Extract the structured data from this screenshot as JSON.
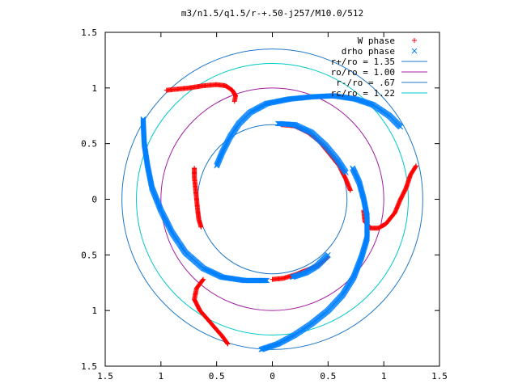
{
  "chart_data": {
    "type": "scatter",
    "title": "m3/n1.5/q1.5/r-+.50-j257/M10.0/512",
    "xlim": [
      -1.5,
      1.5
    ],
    "ylim": [
      -1.5,
      1.5
    ],
    "x_ticks": [
      -1.5,
      -1,
      -0.5,
      0,
      0.5,
      1,
      1.5
    ],
    "y_ticks": [
      -1.5,
      -1,
      -0.5,
      0,
      0.5,
      1,
      1.5
    ],
    "x_tick_labels": [
      "1.5",
      "1",
      "0.5",
      "0",
      "0.5",
      "1",
      "1.5"
    ],
    "y_tick_labels": [
      "1.5",
      "1",
      "0.5",
      "0",
      "0.5",
      "1",
      "1.5"
    ],
    "grid": false,
    "legend_position": "top-right",
    "legend": [
      {
        "label": "W phase",
        "marker": "+",
        "color": "#ff0000"
      },
      {
        "label": "drho phase",
        "marker": "x",
        "color": "#0080ff"
      },
      {
        "label": "r+/ro = 1.35",
        "line": true,
        "color": "#1f77c8"
      },
      {
        "label": "ro/ro = 1.00",
        "line": true,
        "color": "#a020a0"
      },
      {
        "label": "r-/ro = .67",
        "line": true,
        "color": "#1f77c8"
      },
      {
        "label": "rc/ro = 1.22",
        "line": true,
        "color": "#00c8c8"
      }
    ],
    "circles": [
      {
        "name": "r+/ro = 1.35",
        "r": 1.35,
        "color": "#1f77c8"
      },
      {
        "name": "ro/ro = 1.00",
        "r": 1.0,
        "color": "#a020a0"
      },
      {
        "name": "r-/ro = .67",
        "r": 0.67,
        "color": "#1f77c8"
      },
      {
        "name": "rc/ro = 1.22",
        "r": 1.22,
        "color": "#00c8c8"
      }
    ],
    "series": [
      {
        "name": "W phase",
        "color": "#ff0000",
        "marker": "+",
        "arms": [
          [
            [
              -0.7,
              0.28
            ],
            [
              -0.7,
              0.2
            ],
            [
              -0.69,
              0.1
            ],
            [
              -0.68,
              0.0
            ],
            [
              -0.67,
              -0.1
            ],
            [
              -0.66,
              -0.18
            ],
            [
              -0.64,
              -0.25
            ]
          ],
          [
            [
              -0.95,
              0.98
            ],
            [
              -0.85,
              0.99
            ],
            [
              -0.75,
              1.0
            ],
            [
              -0.62,
              1.02
            ],
            [
              -0.5,
              1.03
            ],
            [
              -0.42,
              1.02
            ],
            [
              -0.36,
              0.98
            ],
            [
              -0.33,
              0.93
            ],
            [
              -0.34,
              0.88
            ]
          ],
          [
            [
              1.29,
              0.3
            ],
            [
              1.24,
              0.22
            ],
            [
              1.2,
              0.1
            ],
            [
              1.15,
              0.0
            ],
            [
              1.1,
              -0.12
            ],
            [
              1.02,
              -0.22
            ],
            [
              0.95,
              -0.26
            ],
            [
              0.88,
              -0.26
            ],
            [
              0.83,
              -0.2
            ],
            [
              0.82,
              -0.1
            ]
          ],
          [
            [
              0.0,
              -0.72
            ],
            [
              0.1,
              -0.71
            ],
            [
              0.2,
              -0.68
            ],
            [
              0.3,
              -0.64
            ],
            [
              0.4,
              -0.6
            ],
            [
              0.5,
              -0.52
            ]
          ],
          [
            [
              0.08,
              0.67
            ],
            [
              0.2,
              0.66
            ],
            [
              0.32,
              0.6
            ],
            [
              0.42,
              0.52
            ],
            [
              0.52,
              0.4
            ],
            [
              0.6,
              0.3
            ],
            [
              0.66,
              0.18
            ],
            [
              0.7,
              0.08
            ]
          ],
          [
            [
              -0.62,
              -0.72
            ],
            [
              -0.68,
              -0.8
            ],
            [
              -0.7,
              -0.9
            ],
            [
              -0.65,
              -1.0
            ],
            [
              -0.58,
              -1.08
            ],
            [
              -0.52,
              -1.15
            ],
            [
              -0.45,
              -1.23
            ],
            [
              -0.4,
              -1.3
            ]
          ]
        ]
      },
      {
        "name": "drho phase",
        "color": "#0080ff",
        "marker": "x",
        "arms": [
          [
            [
              1.15,
              0.65
            ],
            [
              1.05,
              0.75
            ],
            [
              0.9,
              0.85
            ],
            [
              0.75,
              0.9
            ],
            [
              0.55,
              0.93
            ],
            [
              0.35,
              0.92
            ],
            [
              0.15,
              0.9
            ],
            [
              -0.05,
              0.86
            ],
            [
              -0.2,
              0.78
            ],
            [
              -0.3,
              0.68
            ],
            [
              -0.38,
              0.56
            ],
            [
              -0.45,
              0.42
            ],
            [
              -0.5,
              0.3
            ]
          ],
          [
            [
              -1.16,
              0.72
            ],
            [
              -1.15,
              0.5
            ],
            [
              -1.12,
              0.3
            ],
            [
              -1.08,
              0.1
            ],
            [
              -1.0,
              -0.1
            ],
            [
              -0.9,
              -0.3
            ],
            [
              -0.78,
              -0.48
            ],
            [
              -0.62,
              -0.62
            ],
            [
              -0.45,
              -0.7
            ],
            [
              -0.25,
              -0.73
            ],
            [
              -0.05,
              -0.73
            ]
          ],
          [
            [
              -0.1,
              -1.35
            ],
            [
              0.05,
              -1.3
            ],
            [
              0.2,
              -1.22
            ],
            [
              0.35,
              -1.12
            ],
            [
              0.5,
              -1.0
            ],
            [
              0.63,
              -0.86
            ],
            [
              0.73,
              -0.7
            ],
            [
              0.8,
              -0.52
            ],
            [
              0.85,
              -0.35
            ],
            [
              0.85,
              -0.15
            ],
            [
              0.82,
              0.0
            ],
            [
              0.78,
              0.15
            ],
            [
              0.72,
              0.28
            ]
          ],
          [
            [
              0.05,
              0.68
            ],
            [
              0.2,
              0.67
            ],
            [
              0.35,
              0.6
            ],
            [
              0.48,
              0.48
            ],
            [
              0.58,
              0.36
            ],
            [
              0.66,
              0.24
            ]
          ],
          [
            [
              0.5,
              -0.5
            ],
            [
              0.4,
              -0.6
            ],
            [
              0.3,
              -0.66
            ],
            [
              0.18,
              -0.7
            ]
          ]
        ]
      }
    ]
  }
}
